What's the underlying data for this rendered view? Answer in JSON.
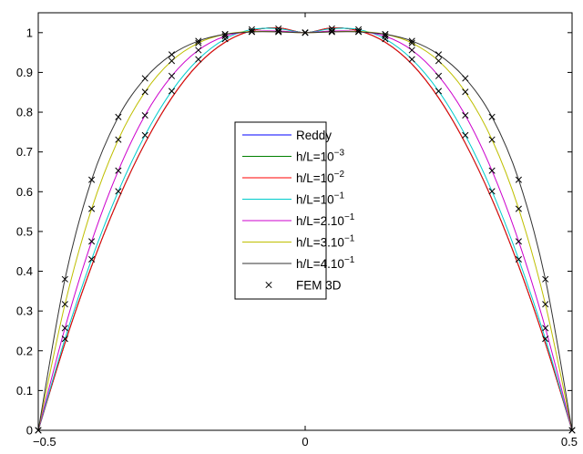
{
  "chart_data": {
    "type": "line",
    "title": "",
    "xlabel": "",
    "ylabel": "",
    "xlim": [
      -0.5,
      0.5
    ],
    "ylim": [
      0,
      1.05
    ],
    "xticks": [
      -0.5,
      0,
      0.5
    ],
    "xtick_labels": [
      "−0.5",
      "0",
      "0.5"
    ],
    "yticks": [
      0,
      0.1,
      0.2,
      0.3,
      0.4,
      0.5,
      0.6,
      0.7,
      0.8,
      0.9,
      1
    ],
    "ytick_labels": [
      "0",
      "0.1",
      "0.2",
      "0.3",
      "0.4",
      "0.5",
      "0.6",
      "0.7",
      "0.8",
      "0.9",
      "1"
    ],
    "grid": false,
    "legend_position": "center",
    "x": [
      -0.5,
      -0.45,
      -0.4,
      -0.35,
      -0.3,
      -0.25,
      -0.2,
      -0.15,
      -0.1,
      -0.05,
      0,
      0.05,
      0.1,
      0.15,
      0.2,
      0.25,
      0.3,
      0.35,
      0.4,
      0.45,
      0.5
    ],
    "series": [
      {
        "name": "Reddy",
        "base": "10",
        "exp": "",
        "color": "#0000ff",
        "marker": "none",
        "values": [
          0,
          0.219,
          0.413,
          0.581,
          0.722,
          0.836,
          0.921,
          0.976,
          1.005,
          1.012,
          1,
          1.012,
          1.005,
          0.976,
          0.921,
          0.836,
          0.722,
          0.581,
          0.413,
          0.219,
          0
        ]
      },
      {
        "name": "h/L=10",
        "base": "h/L=10",
        "exp": "−3",
        "color": "#008000",
        "marker": "none",
        "values": [
          0,
          0.219,
          0.413,
          0.581,
          0.722,
          0.836,
          0.921,
          0.976,
          1.005,
          1.012,
          1,
          1.012,
          1.005,
          0.976,
          0.921,
          0.836,
          0.722,
          0.581,
          0.413,
          0.219,
          0
        ]
      },
      {
        "name": "h/L=10",
        "base": "h/L=10",
        "exp": "−2",
        "color": "#ff0000",
        "marker": "none",
        "values": [
          0,
          0.219,
          0.413,
          0.581,
          0.722,
          0.836,
          0.921,
          0.976,
          1.005,
          1.012,
          1,
          1.012,
          1.005,
          0.976,
          0.921,
          0.836,
          0.722,
          0.581,
          0.413,
          0.219,
          0
        ]
      },
      {
        "name": "h/L=10",
        "base": "h/L=10",
        "exp": "−1",
        "color": "#00cccc",
        "marker": "none",
        "values": [
          0,
          0.23,
          0.43,
          0.601,
          0.742,
          0.853,
          0.933,
          0.984,
          1.008,
          1.01,
          1,
          1.01,
          1.008,
          0.984,
          0.933,
          0.853,
          0.742,
          0.601,
          0.43,
          0.23,
          0
        ]
      },
      {
        "name": "h/L=2.10",
        "base": "h/L=2.10",
        "exp": "−1",
        "color": "#cc00cc",
        "marker": "none",
        "values": [
          0,
          0.257,
          0.475,
          0.653,
          0.792,
          0.891,
          0.956,
          0.991,
          1.003,
          1.004,
          1,
          1.004,
          1.003,
          0.991,
          0.956,
          0.891,
          0.792,
          0.653,
          0.475,
          0.257,
          0
        ]
      },
      {
        "name": "h/L=3.10",
        "base": "h/L=3.10",
        "exp": "−1",
        "color": "#bfbf00",
        "marker": "none",
        "values": [
          0,
          0.317,
          0.557,
          0.731,
          0.851,
          0.929,
          0.974,
          0.996,
          1.003,
          1.002,
          1,
          1.002,
          1.003,
          0.996,
          0.974,
          0.929,
          0.851,
          0.731,
          0.557,
          0.317,
          0
        ]
      },
      {
        "name": "h/L=4.10",
        "base": "h/L=4.10",
        "exp": "−1",
        "color": "#333333",
        "marker": "none",
        "values": [
          0,
          0.38,
          0.63,
          0.788,
          0.885,
          0.945,
          0.979,
          0.996,
          1.002,
          1.002,
          1,
          1.002,
          1.002,
          0.996,
          0.979,
          0.945,
          0.885,
          0.788,
          0.63,
          0.38,
          0
        ]
      },
      {
        "name": "FEM 3D",
        "base": "FEM 3D",
        "exp": "",
        "color": "#000000",
        "marker": "x",
        "groups": [
          [
            0,
            0.23,
            0.43,
            0.601,
            0.742,
            0.853,
            0.933,
            0.984,
            1.008,
            1.01,
            1,
            1.01,
            1.008,
            0.984,
            0.933,
            0.853,
            0.742,
            0.601,
            0.43,
            0.23,
            0
          ],
          [
            0,
            0.257,
            0.475,
            0.653,
            0.792,
            0.891,
            0.956,
            0.991,
            1.003,
            1.004,
            1,
            1.004,
            1.003,
            0.991,
            0.956,
            0.891,
            0.792,
            0.653,
            0.475,
            0.257,
            0
          ],
          [
            0,
            0.317,
            0.557,
            0.731,
            0.851,
            0.929,
            0.974,
            0.996,
            1.003,
            1.002,
            1,
            1.002,
            1.003,
            0.996,
            0.974,
            0.929,
            0.851,
            0.731,
            0.557,
            0.317,
            0
          ],
          [
            0,
            0.38,
            0.63,
            0.788,
            0.885,
            0.945,
            0.979,
            0.996,
            1.002,
            1.002,
            1,
            1.002,
            1.002,
            0.996,
            0.979,
            0.945,
            0.885,
            0.788,
            0.63,
            0.38,
            0
          ]
        ]
      }
    ]
  }
}
